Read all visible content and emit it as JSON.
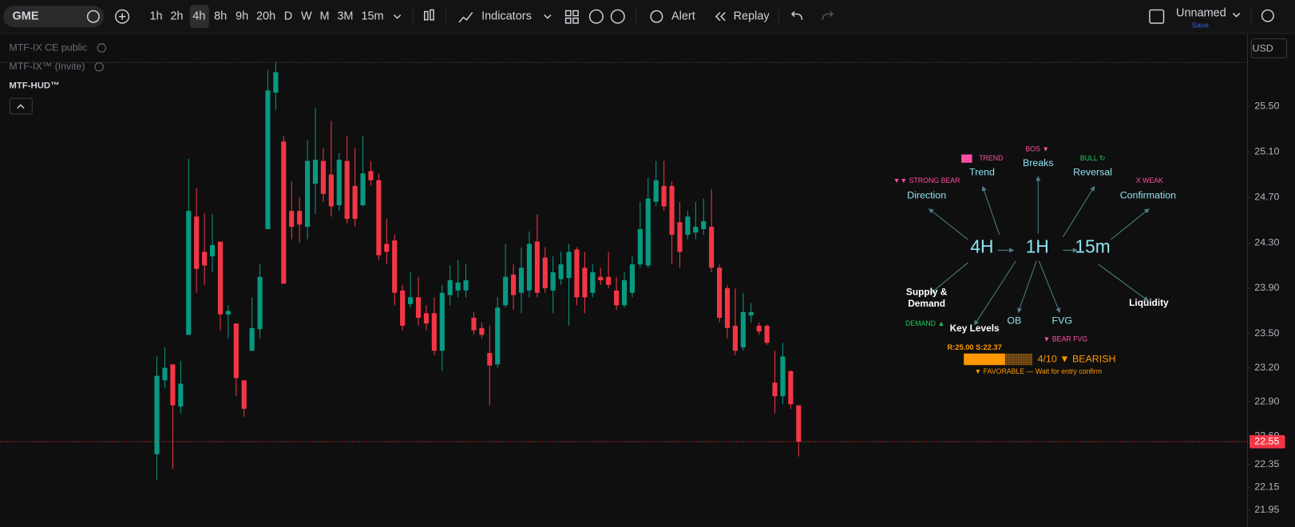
{
  "toolbar": {
    "symbol": "GME",
    "intervals": [
      "1h",
      "2h",
      "4h",
      "8h",
      "9h",
      "20h",
      "D",
      "W",
      "M",
      "3M",
      "15m"
    ],
    "indicators": "Indicators",
    "alert": "Alert",
    "replay": "Replay",
    "layout_name": "Unnamed",
    "save": "Save",
    "currency": "USD"
  },
  "legend": [
    "MTF-IX CE public",
    "MTF-IX™ (Invite)",
    "MTF-HUD™"
  ],
  "chart_data": {
    "type": "candlestick",
    "open": [
      22.44,
      23.09,
      23.23,
      22.86,
      23.49,
      24.53,
      24.22,
      24.18,
      24.31,
      23.67,
      23.59,
      23.09,
      23.35,
      23.54,
      24.42,
      25.62,
      25.19,
      24.58,
      24.58,
      24.44,
      24.82,
      25.02,
      24.9,
      24.63,
      25.02,
      24.8,
      24.63,
      24.93,
      24.85,
      24.29,
      24.32,
      23.88,
      23.76,
      23.82,
      23.68,
      23.68,
      23.35,
      23.84,
      23.88,
      23.88,
      23.64,
      23.55,
      23.33,
      23.23,
      23.75,
      24.02,
      23.86,
      23.88,
      24.31,
      24.17,
      23.88,
      23.98,
      23.99,
      24.24,
      24.08,
      23.86,
      24.0,
      24.0,
      23.88,
      23.75,
      23.86,
      24.11,
      24.1,
      24.66,
      24.8,
      24.8,
      24.48,
      24.37,
      24.39,
      24.42,
      24.44,
      24.08,
      23.9,
      23.57,
      23.38,
      23.66,
      23.57,
      23.57,
      23.07,
      22.95,
      23.17,
      22.87
    ],
    "high": [
      23.3,
      23.38,
      23.23,
      23.26,
      25.04,
      24.78,
      24.56,
      24.55,
      24.31,
      23.75,
      23.59,
      23.09,
      23.82,
      24.11,
      25.82,
      25.89,
      25.24,
      24.84,
      24.7,
      25.2,
      25.49,
      25.13,
      25.37,
      25.09,
      25.24,
      25.13,
      25.24,
      25.02,
      24.91,
      24.51,
      24.37,
      23.93,
      24.04,
      24.0,
      23.75,
      23.82,
      23.93,
      24.1,
      24.15,
      24.11,
      23.69,
      23.6,
      23.57,
      23.82,
      24.29,
      24.11,
      24.26,
      24.4,
      24.55,
      24.26,
      24.18,
      24.22,
      24.29,
      24.26,
      24.22,
      24.11,
      24.08,
      24.22,
      24.0,
      24.04,
      24.18,
      24.66,
      24.87,
      25.02,
      25.02,
      24.84,
      24.66,
      24.58,
      24.66,
      24.69,
      24.77,
      24.11,
      23.93,
      23.9,
      23.86,
      23.77,
      23.6,
      23.58,
      23.35,
      23.42,
      23.18,
      22.87
    ],
    "low": [
      22.21,
      23.02,
      22.31,
      22.8,
      23.49,
      23.86,
      23.93,
      24.04,
      23.53,
      23.46,
      22.95,
      22.77,
      23.35,
      23.46,
      24.42,
      25.47,
      23.94,
      24.33,
      24.3,
      24.33,
      24.55,
      24.66,
      24.53,
      24.58,
      24.47,
      24.44,
      24.62,
      24.8,
      24.15,
      24.11,
      23.75,
      23.53,
      23.73,
      23.57,
      23.53,
      23.31,
      23.17,
      23.75,
      23.82,
      23.82,
      23.49,
      23.46,
      22.87,
      23.2,
      23.73,
      23.71,
      23.68,
      23.82,
      23.82,
      23.86,
      23.68,
      23.93,
      23.57,
      23.75,
      23.68,
      23.82,
      23.93,
      23.9,
      23.71,
      23.73,
      23.82,
      24.08,
      24.08,
      24.62,
      24.58,
      24.11,
      24.08,
      24.33,
      24.33,
      24.37,
      24.04,
      23.6,
      23.46,
      23.31,
      23.35,
      23.6,
      23.49,
      23.4,
      22.8,
      22.88,
      22.84,
      22.42
    ],
    "close": [
      23.13,
      23.2,
      22.87,
      23.06,
      24.58,
      24.07,
      24.1,
      24.28,
      23.67,
      23.7,
      23.11,
      22.84,
      23.55,
      24.0,
      25.64,
      25.8,
      23.94,
      24.44,
      24.46,
      25.02,
      25.03,
      24.73,
      24.62,
      25.03,
      24.51,
      24.51,
      24.91,
      24.85,
      24.19,
      24.22,
      23.86,
      23.57,
      23.82,
      23.64,
      23.59,
      23.35,
      23.86,
      23.97,
      23.95,
      23.97,
      23.53,
      23.49,
      23.22,
      23.73,
      24.0,
      23.84,
      24.08,
      24.29,
      23.86,
      23.9,
      24.04,
      24.11,
      24.22,
      23.82,
      23.82,
      24.04,
      23.97,
      23.93,
      23.75,
      23.97,
      24.11,
      24.42,
      24.69,
      24.85,
      24.62,
      24.37,
      24.22,
      24.53,
      24.44,
      24.49,
      24.08,
      23.64,
      23.55,
      23.35,
      23.69,
      23.69,
      23.52,
      23.42,
      22.95,
      23.3,
      22.88,
      22.55
    ],
    "up_color": "#089981",
    "down_color": "#f23645",
    "ylim": [
      21.8,
      26.13
    ],
    "yticks": [
      {
        "value": 21.95,
        "label": "21.95"
      },
      {
        "value": 22.15,
        "label": "22.15"
      },
      22.35,
      {
        "value": 22.6,
        "label": "22.60"
      },
      {
        "value": 22.9,
        "label": "22.90"
      },
      {
        "value": 23.2,
        "label": "23.20"
      },
      {
        "value": 23.5,
        "label": "23.50"
      },
      {
        "value": 23.9,
        "label": "23.90"
      },
      {
        "value": 24.3,
        "label": "24.30"
      },
      {
        "value": 24.7,
        "label": "24.70"
      },
      {
        "value": 25.1,
        "label": "25.10"
      },
      {
        "value": 25.5,
        "label": "25.50"
      }
    ],
    "last_price": {
      "value": 22.55,
      "label": "22.55"
    }
  },
  "hud": {
    "trend_tag": "TREND",
    "trend": "Trend",
    "breaks_tag": "BOS ▼",
    "breaks": "Breaks",
    "reversal_tag": "BULL ↻",
    "reversal": "Reversal",
    "direction_tag": "▼▼ STRONG BEAR",
    "direction": "Direction",
    "confirmation_tag": "X WEAK",
    "confirmation": "Confirmation",
    "tf_high": "4H",
    "tf_mid": "1H",
    "tf_low": "15m",
    "supply_1": "Supply &",
    "supply_2": "Demand",
    "liquidity": "Liquidity",
    "key_levels": "Key Levels",
    "ob": "OB",
    "fvg": "FVG",
    "demand_tag": "DEMAND ▲",
    "fvg_tag": "▼ BEAR FVG",
    "levels": "R:25.00 S:22.37",
    "score": "4/10",
    "bias": "▼ BEARISH",
    "status": "▼ FAVORABLE — Wait for entry confirm"
  }
}
